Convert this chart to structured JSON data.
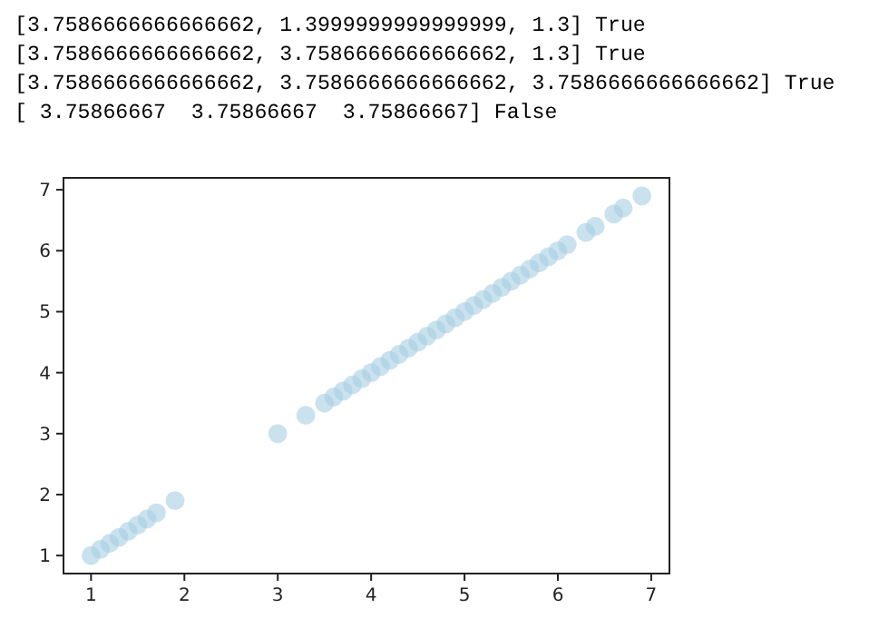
{
  "chart_data": {
    "type": "scatter",
    "annotations": [
      "[3.7586666666666662, 1.3999999999999999, 1.3] True",
      "[3.7586666666666662, 3.7586666666666662, 1.3] True",
      "[3.7586666666666662, 3.7586666666666662, 3.7586666666666662] True",
      "[ 3.75866667  3.75866667  3.75866667] False"
    ],
    "x": [
      1.0,
      1.1,
      1.2,
      1.3,
      1.4,
      1.5,
      1.6,
      1.7,
      1.9,
      3.0,
      3.3,
      3.5,
      3.6,
      3.7,
      3.8,
      3.9,
      4.0,
      4.1,
      4.2,
      4.3,
      4.4,
      4.5,
      4.6,
      4.7,
      4.8,
      4.9,
      5.0,
      5.1,
      5.2,
      5.3,
      5.4,
      5.5,
      5.6,
      5.7,
      5.8,
      5.9,
      6.0,
      6.1,
      6.3,
      6.4,
      6.6,
      6.7,
      6.9
    ],
    "series": [
      {
        "color": "#a6cee3",
        "values": [
          1.0,
          1.1,
          1.2,
          1.3,
          1.4,
          1.5,
          1.6,
          1.7,
          1.9,
          3.0,
          3.3,
          3.5,
          3.6,
          3.7,
          3.8,
          3.9,
          4.0,
          4.1,
          4.2,
          4.3,
          4.4,
          4.5,
          4.6,
          4.7,
          4.8,
          4.9,
          5.0,
          5.1,
          5.2,
          5.3,
          5.4,
          5.5,
          5.6,
          5.7,
          5.8,
          5.9,
          6.0,
          6.1,
          6.3,
          6.4,
          6.6,
          6.7,
          6.9
        ]
      }
    ],
    "marker": "circle",
    "xlim": [
      0.705,
      7.195
    ],
    "ylim": [
      0.705,
      7.195
    ],
    "xticks": [
      1,
      2,
      3,
      4,
      5,
      6,
      7
    ],
    "yticks": [
      1,
      2,
      3,
      4,
      5,
      6,
      7
    ]
  }
}
